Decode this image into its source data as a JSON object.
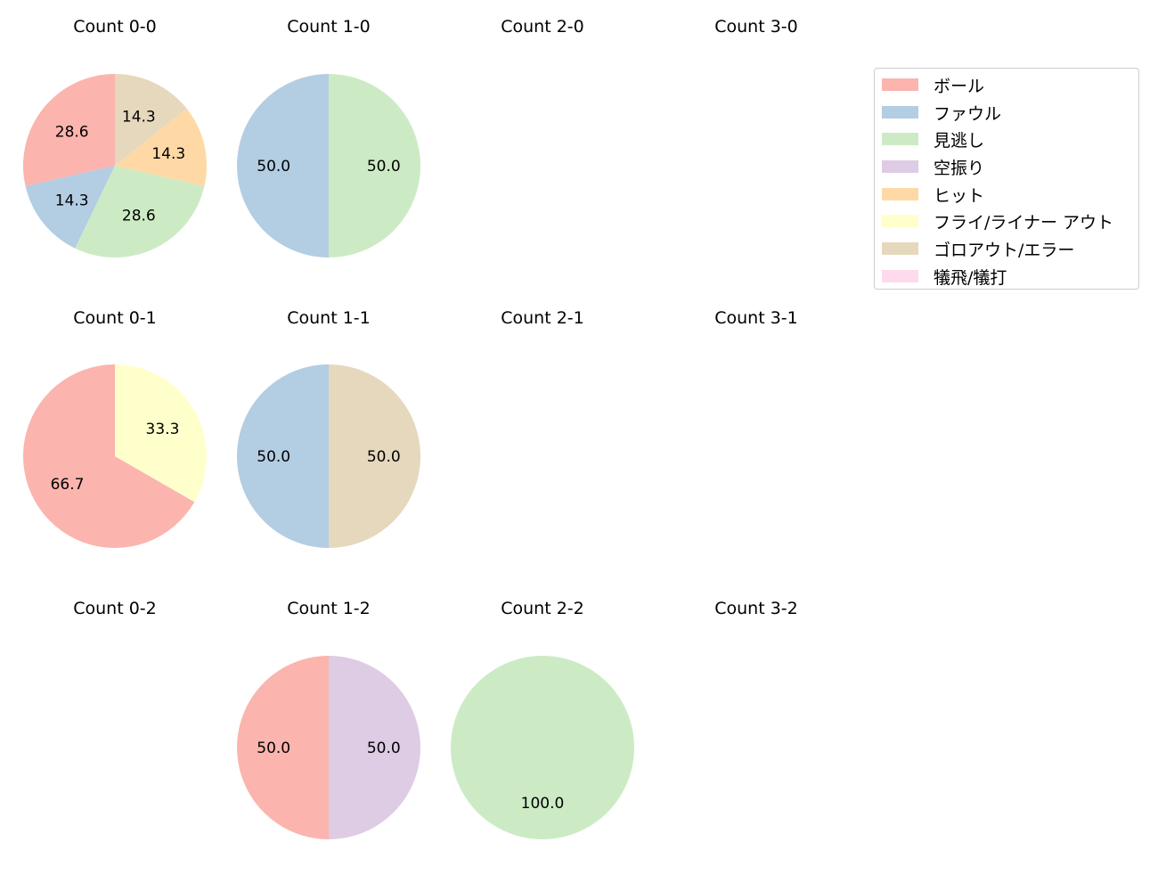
{
  "chart_data": {
    "type": "pie",
    "categories": [
      "ボール",
      "ファウル",
      "見逃し",
      "空振り",
      "ヒット",
      "フライ/ライナー アウト",
      "ゴロアウト/エラー",
      "犠飛/犠打"
    ],
    "colors": [
      "#fbb4ae",
      "#b3cde3",
      "#ccebc5",
      "#decbe4",
      "#fed9a6",
      "#ffffcc",
      "#e5d8bd",
      "#fddaec"
    ],
    "legend_placement": "top-right",
    "charts": [
      {
        "title": "Count 0-0",
        "values": [
          28.6,
          14.3,
          28.6,
          0,
          14.3,
          0,
          14.3,
          0
        ],
        "labels": [
          "28.6",
          "14.3",
          "28.6",
          "",
          "14.3",
          "",
          "14.3",
          ""
        ]
      },
      {
        "title": "Count 1-0",
        "values": [
          0,
          50.0,
          50.0,
          0,
          0,
          0,
          0,
          0
        ],
        "labels": [
          "",
          "50.0",
          "50.0",
          "",
          "",
          "",
          "",
          ""
        ]
      },
      {
        "title": "Count 2-0",
        "values": [],
        "labels": []
      },
      {
        "title": "Count 3-0",
        "values": [],
        "labels": []
      },
      {
        "title": "Count 0-1",
        "values": [
          66.7,
          0,
          0,
          0,
          0,
          33.3,
          0,
          0
        ],
        "labels": [
          "66.7",
          "",
          "",
          "",
          "",
          "33.3",
          "",
          ""
        ]
      },
      {
        "title": "Count 1-1",
        "values": [
          0,
          50.0,
          0,
          0,
          0,
          0,
          50.0,
          0
        ],
        "labels": [
          "",
          "50.0",
          "",
          "",
          "",
          "",
          "50.0",
          ""
        ]
      },
      {
        "title": "Count 2-1",
        "values": [],
        "labels": []
      },
      {
        "title": "Count 3-1",
        "values": [],
        "labels": []
      },
      {
        "title": "Count 0-2",
        "values": [],
        "labels": []
      },
      {
        "title": "Count 1-2",
        "values": [
          50.0,
          0,
          0,
          50.0,
          0,
          0,
          0,
          0
        ],
        "labels": [
          "50.0",
          "",
          "",
          "50.0",
          "",
          "",
          "",
          ""
        ]
      },
      {
        "title": "Count 2-2",
        "values": [
          0,
          0,
          100.0,
          0,
          0,
          0,
          0,
          0
        ],
        "labels": [
          "",
          "",
          "100.0",
          "",
          "",
          "",
          "",
          ""
        ]
      },
      {
        "title": "Count 3-2",
        "values": [],
        "labels": []
      }
    ]
  }
}
